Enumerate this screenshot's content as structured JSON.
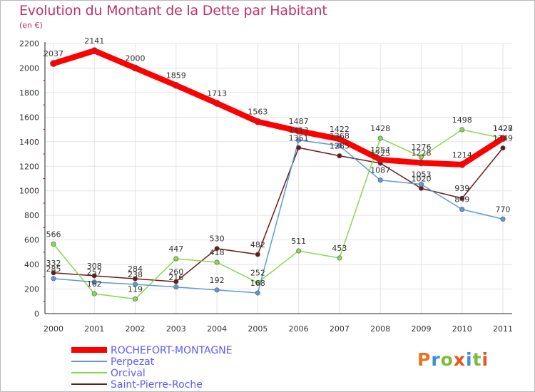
{
  "chart_data": {
    "type": "line",
    "title": "Evolution du Montant de la Dette par Habitant",
    "unit_label": "(en €)",
    "xlabel": "",
    "ylabel": "",
    "categories": [
      "2000",
      "2001",
      "2002",
      "2003",
      "2004",
      "2005",
      "2006",
      "2007",
      "2008",
      "2009",
      "2010",
      "2011"
    ],
    "ylim": [
      0,
      2200
    ],
    "yticks": [
      "0",
      "200",
      "400",
      "600",
      "800",
      "1000",
      "1200",
      "1400",
      "1600",
      "1800",
      "2000",
      "2200"
    ],
    "series": [
      {
        "name": "Saint-Pierre-Roche",
        "color": "#6b1a1a",
        "width": 1.5,
        "values": [
          332,
          308,
          284,
          260,
          530,
          482,
          1351,
          1285,
          1225,
          1020,
          939,
          1349
        ],
        "labels": [
          "332",
          "308",
          "284",
          "260",
          "530",
          "482",
          "1351",
          "1285",
          "1225",
          "1020",
          "939",
          "1349"
        ]
      },
      {
        "name": "Orcival",
        "color": "#88d850",
        "width": 1.5,
        "values": [
          566,
          162,
          119,
          447,
          418,
          252,
          511,
          453,
          1428,
          1276,
          1498,
          1428
        ],
        "labels": [
          "566",
          "162",
          "119",
          "447",
          "418",
          "252",
          "511",
          "453",
          "1428",
          "1276",
          "1498",
          "1428"
        ]
      },
      {
        "name": "Perpezat",
        "color": "#5b9bd5",
        "width": 1.5,
        "values": [
          285,
          257,
          238,
          216,
          192,
          168,
          1413,
          1368,
          1087,
          1053,
          849,
          770
        ],
        "labels": [
          "285",
          "257",
          "238",
          "216",
          "192",
          "168",
          "1413",
          "1368",
          "1087",
          "1053",
          "849",
          "770"
        ]
      },
      {
        "name": "ROCHEFORT-MONTAGNE",
        "color": "#ff0000",
        "width": 8,
        "values": [
          2037,
          2141,
          2000,
          1859,
          1713,
          1563,
          1487,
          1422,
          1254,
          1228,
          1214,
          1427
        ],
        "labels": [
          "2037",
          "2141",
          "2000",
          "1859",
          "1713",
          "1563",
          "1487",
          "1422",
          "1254",
          "1228",
          "1214",
          "1427"
        ]
      }
    ],
    "legend": [
      "ROCHEFORT-MONTAGNE",
      "Perpezat",
      "Orcival",
      "Saint-Pierre-Roche"
    ],
    "legend_colors": [
      "#ff0000",
      "#5b9bd5",
      "#88d850",
      "#6b1a1a"
    ],
    "legend_text_color": "#5b5bff",
    "grid": true
  },
  "branding": {
    "logo_text": "Proxiti"
  }
}
